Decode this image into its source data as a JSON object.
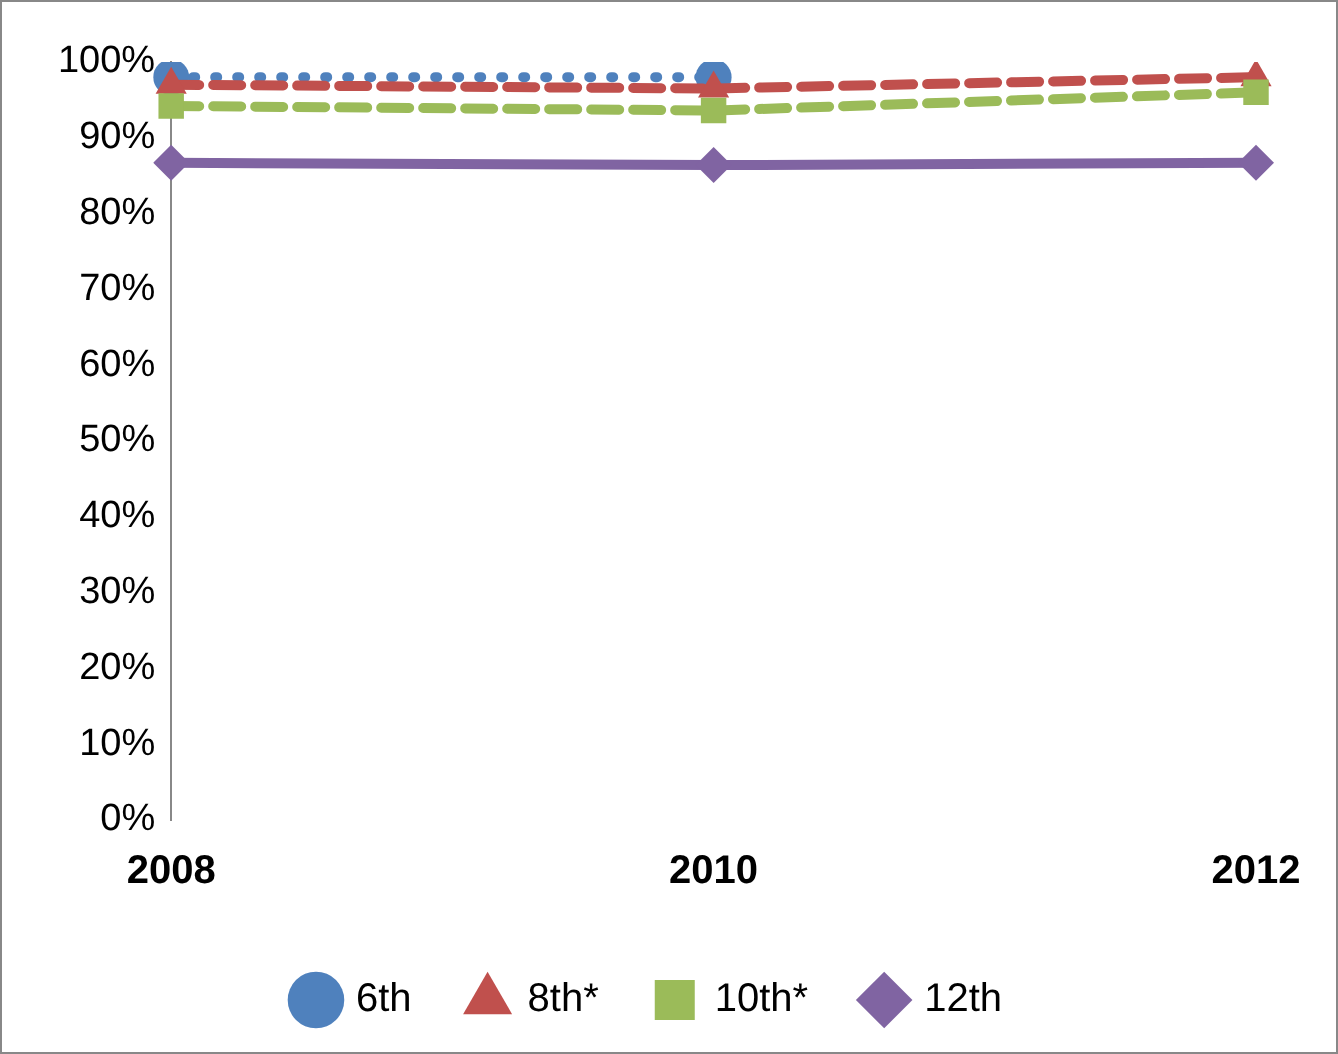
{
  "chart_data": {
    "type": "line",
    "categories": [
      "2008",
      "2010",
      "2012"
    ],
    "ylim": [
      0,
      100
    ],
    "yticks": [
      {
        "value": 0,
        "label": "0%"
      },
      {
        "value": 10,
        "label": "10%"
      },
      {
        "value": 20,
        "label": "20%"
      },
      {
        "value": 30,
        "label": "30%"
      },
      {
        "value": 40,
        "label": "40%"
      },
      {
        "value": 50,
        "label": "50%"
      },
      {
        "value": 60,
        "label": "60%"
      },
      {
        "value": 70,
        "label": "70%"
      },
      {
        "value": 80,
        "label": "80%"
      },
      {
        "value": 90,
        "label": "90%"
      },
      {
        "value": 100,
        "label": "100%"
      }
    ],
    "grid": false,
    "legend": "bottom",
    "series": [
      {
        "name": "6th",
        "color": "#4f81bd",
        "values": [
          98,
          98,
          null
        ],
        "marker": "circle",
        "line_style": "dotted"
      },
      {
        "name": "8th*",
        "color": "#c0504d",
        "values": [
          97,
          96.5,
          98
        ],
        "marker": "triangle",
        "line_style": "dashed"
      },
      {
        "name": "10th*",
        "color": "#9bbb59",
        "values": [
          94.2,
          93.6,
          96
        ],
        "marker": "square",
        "line_style": "dashed"
      },
      {
        "name": "12th",
        "color": "#8064a2",
        "values": [
          86.7,
          86.4,
          86.7
        ],
        "marker": "diamond",
        "line_style": "solid"
      }
    ]
  }
}
